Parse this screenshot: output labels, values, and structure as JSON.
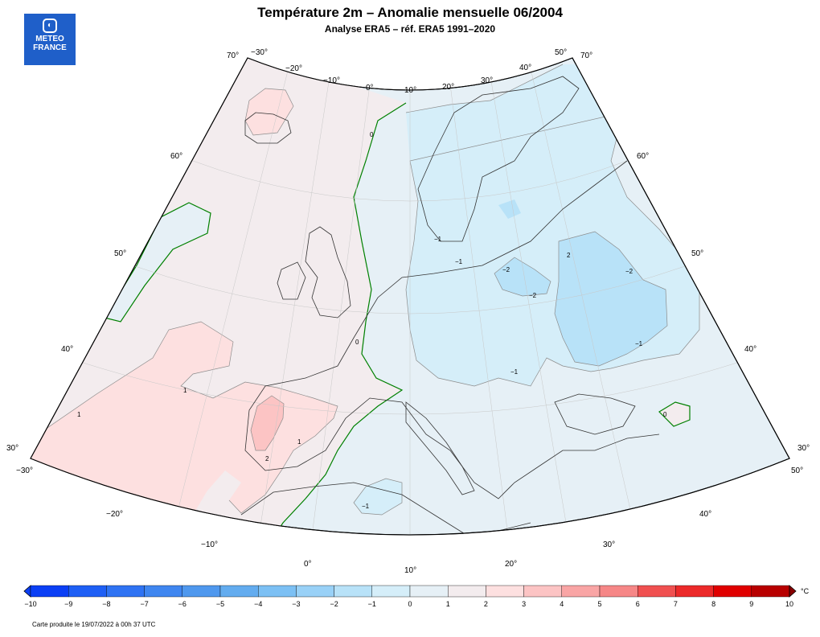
{
  "title": "Température 2m – Anomalie mensuelle 06/2004",
  "subtitle": "Analyse ERA5 – réf. ERA5 1991–2020",
  "logo": {
    "line1": "METEO",
    "line2": "FRANCE",
    "icon": "meteo-france-logo-icon"
  },
  "footnote": "Carte produite le 19/07/2022 à 00h 37 UTC",
  "colorbar": {
    "unit": "°C",
    "ticks": [
      "−10",
      "−9",
      "−8",
      "−7",
      "−6",
      "−5",
      "−4",
      "−3",
      "−2",
      "−1",
      "0",
      "1",
      "2",
      "3",
      "4",
      "5",
      "6",
      "7",
      "8",
      "9",
      "10"
    ],
    "colors": [
      "#0b3ff5",
      "#1e5ff5",
      "#2f73f3",
      "#3f86f0",
      "#4f98ee",
      "#63acef",
      "#7cc0f4",
      "#99d1f7",
      "#b8e2f8",
      "#d5eef9",
      "#e6f0f6",
      "#f3ecee",
      "#fde0e0",
      "#fcc4c4",
      "#f9a5a5",
      "#f68787",
      "#f05050",
      "#ec2a2a",
      "#e00000",
      "#b80000",
      "#880000"
    ]
  },
  "lat_labels_left": [
    "70°",
    "60°",
    "50°",
    "40°",
    "30°"
  ],
  "lat_labels_right": [
    "70°",
    "60°",
    "50°",
    "40°",
    "30°"
  ],
  "lon_labels_top": [
    "−30°",
    "−20°",
    "−10°",
    "0°",
    "10°",
    "20°",
    "30°",
    "40°",
    "50°"
  ],
  "lon_labels_bottom": [
    "−30°",
    "−20°",
    "−10°",
    "0°",
    "10°",
    "20°",
    "30°",
    "40°",
    "50°"
  ],
  "contour_labels": [
    "1",
    "1",
    "0",
    "0",
    "1",
    "2",
    "2",
    "−1",
    "−1",
    "−1",
    "−2",
    "−2",
    "−2",
    "−1",
    "−1",
    "0"
  ],
  "palette": {
    "neg1": "#d5eef9",
    "neg2": "#b8e2f8",
    "neg0": "#e6f0f6",
    "pos0": "#f3ecee",
    "pos1": "#fde0e0",
    "pos2": "#fcc4c4",
    "zero_line": "#008000"
  }
}
